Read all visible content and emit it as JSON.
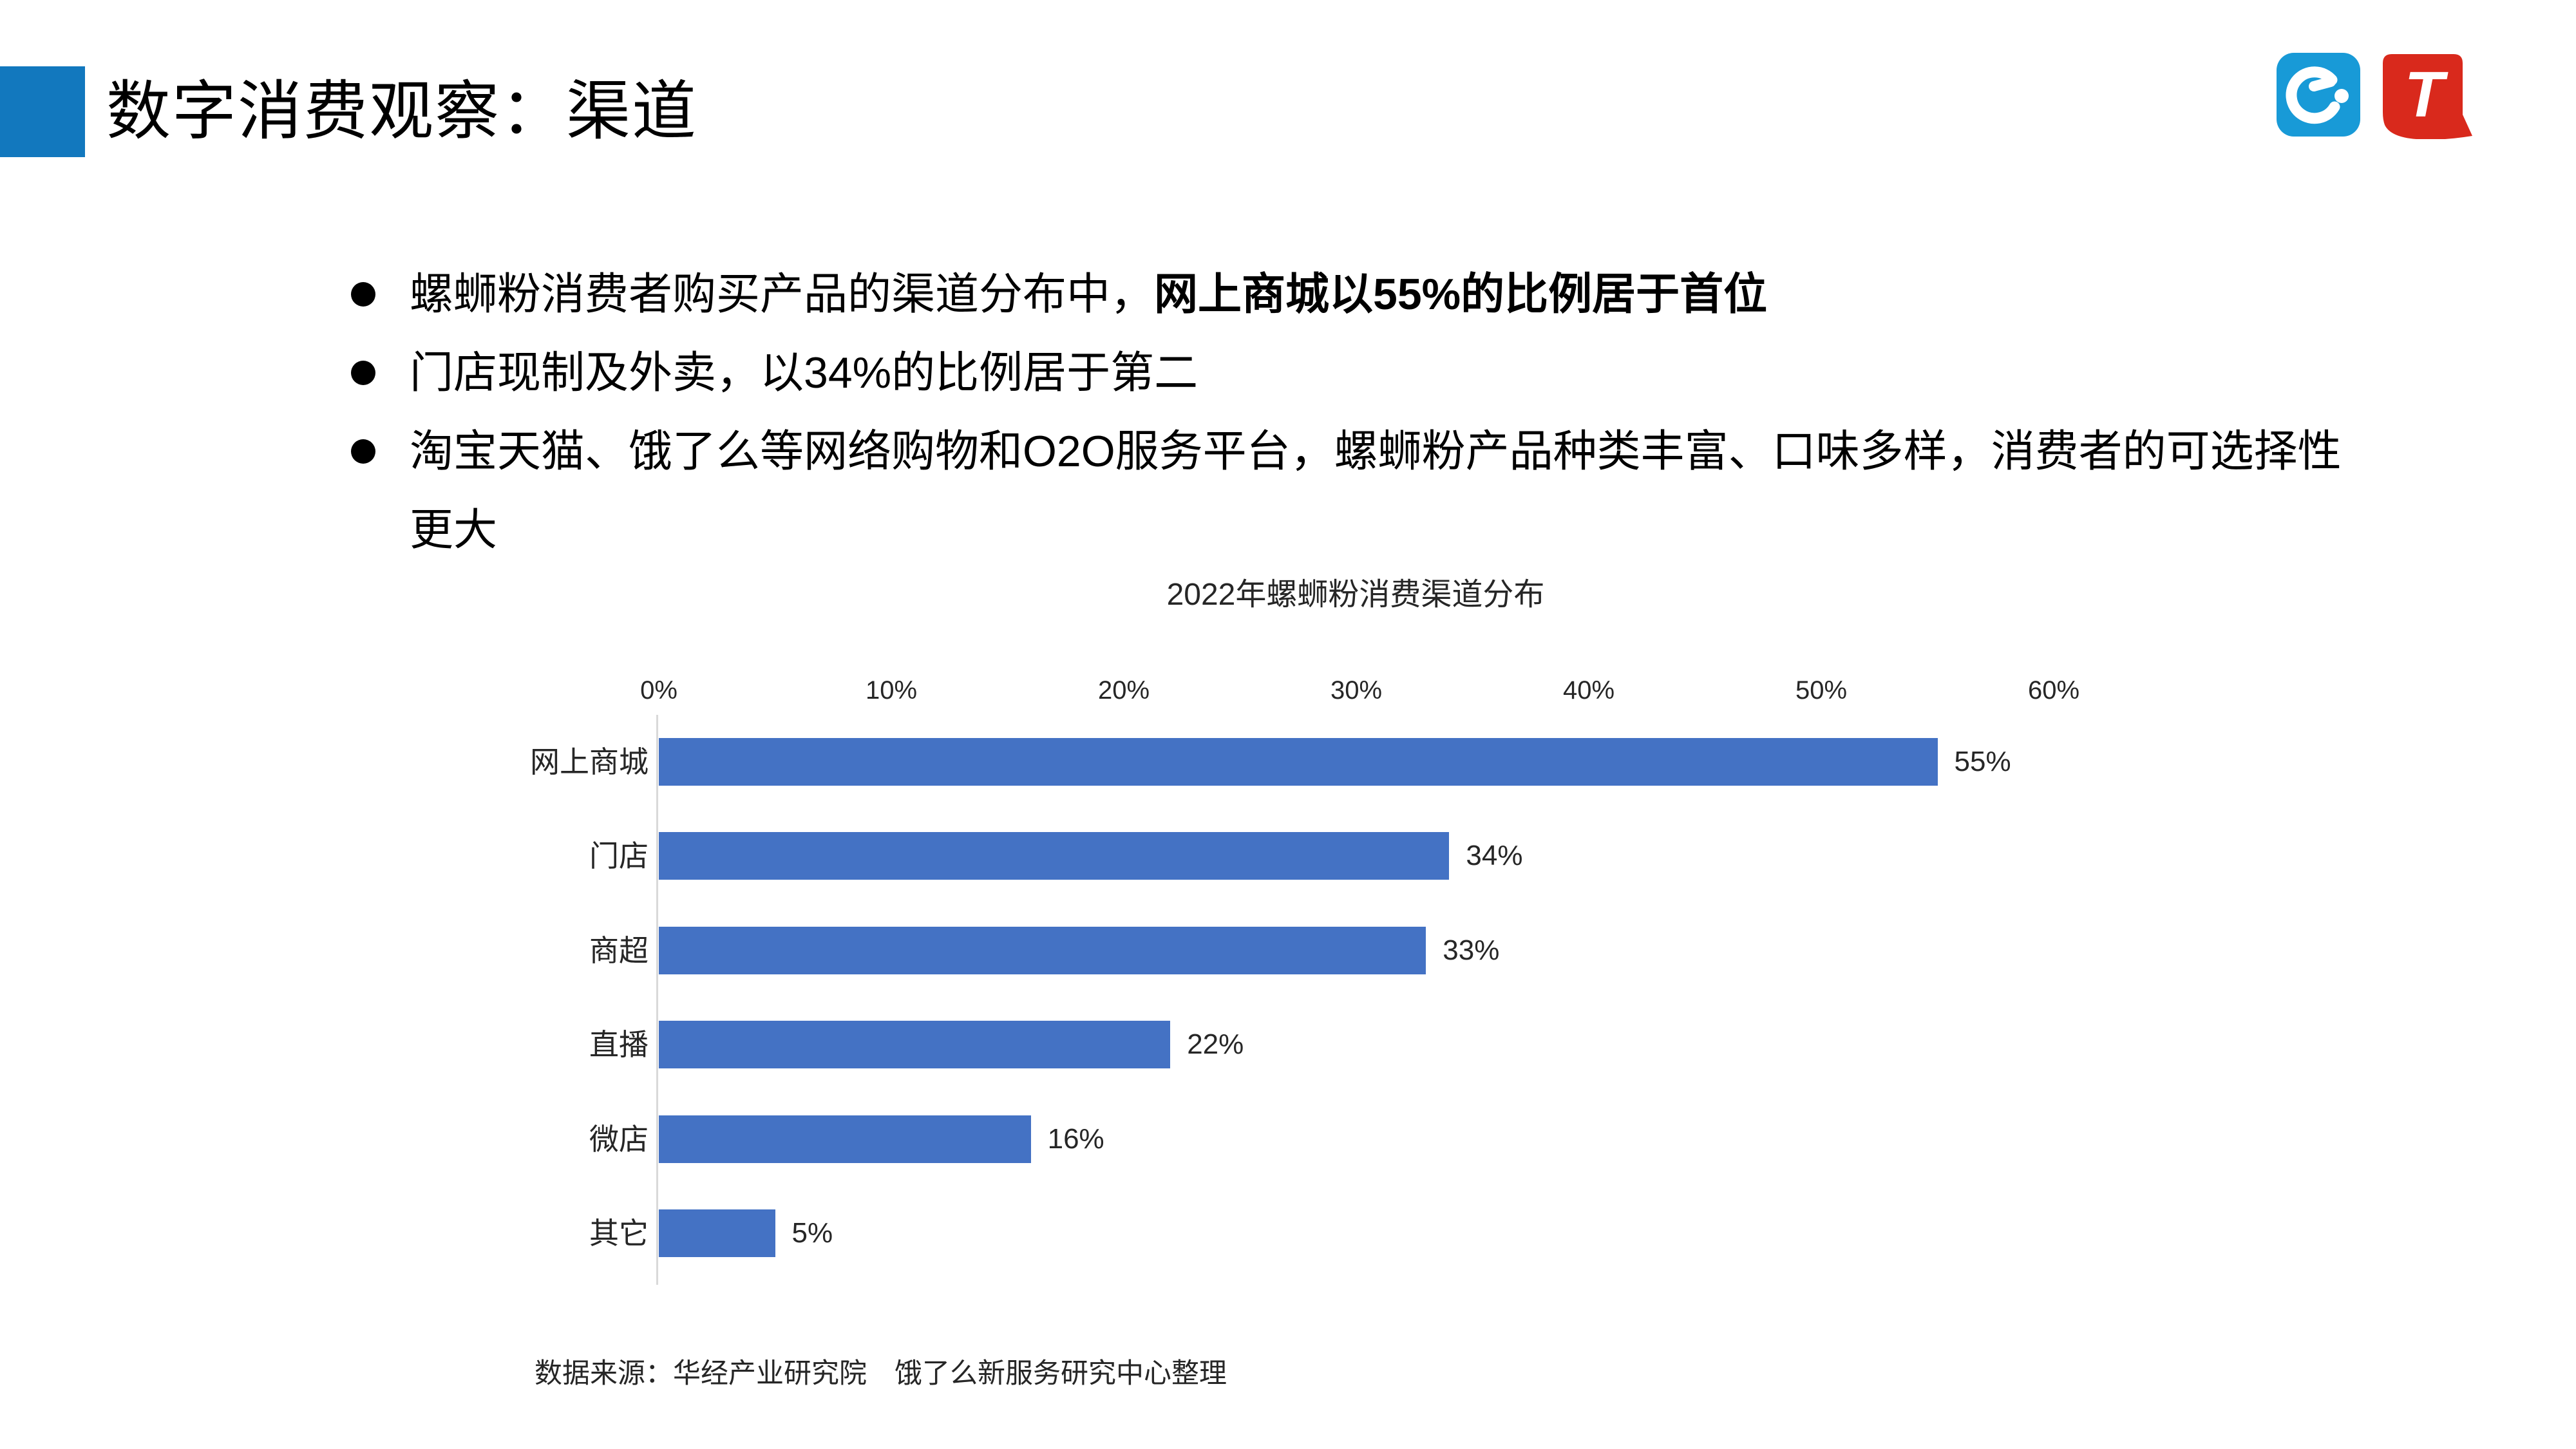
{
  "header": {
    "title": "数字消费观察：渠道",
    "accent_color": "#1278BE"
  },
  "logos": {
    "eleme": {
      "name": "eleme-logo",
      "bg_color": "#189AD7"
    },
    "t": {
      "label": "T",
      "bg_color": "#D9291C"
    }
  },
  "bullets": [
    {
      "normal": "螺蛳粉消费者购买产品的渠道分布中，",
      "bold": "网上商城以55%的比例居于首位"
    },
    {
      "normal": "门店现制及外卖，以34%的比例居于第二",
      "bold": ""
    },
    {
      "normal": "淘宝天猫、饿了么等网络购物和O2O服务平台，螺蛳粉产品种类丰富、口味多样，消费者的可选择性更大",
      "bold": ""
    }
  ],
  "chart_data": {
    "type": "bar",
    "orientation": "horizontal",
    "title": "2022年螺蛳粉消费渠道分布",
    "categories": [
      "网上商城",
      "门店",
      "商超",
      "直播",
      "微店",
      "其它"
    ],
    "values": [
      55,
      34,
      33,
      22,
      16,
      5
    ],
    "value_labels": [
      "55%",
      "34%",
      "33%",
      "22%",
      "16%",
      "5%"
    ],
    "x_ticks": [
      "0%",
      "10%",
      "20%",
      "30%",
      "40%",
      "50%",
      "60%"
    ],
    "xlim": [
      0,
      60
    ],
    "bar_color": "#4472C4",
    "grid": false,
    "legend": false
  },
  "source": "数据来源：华经产业研究院　饿了么新服务研究中心整理"
}
